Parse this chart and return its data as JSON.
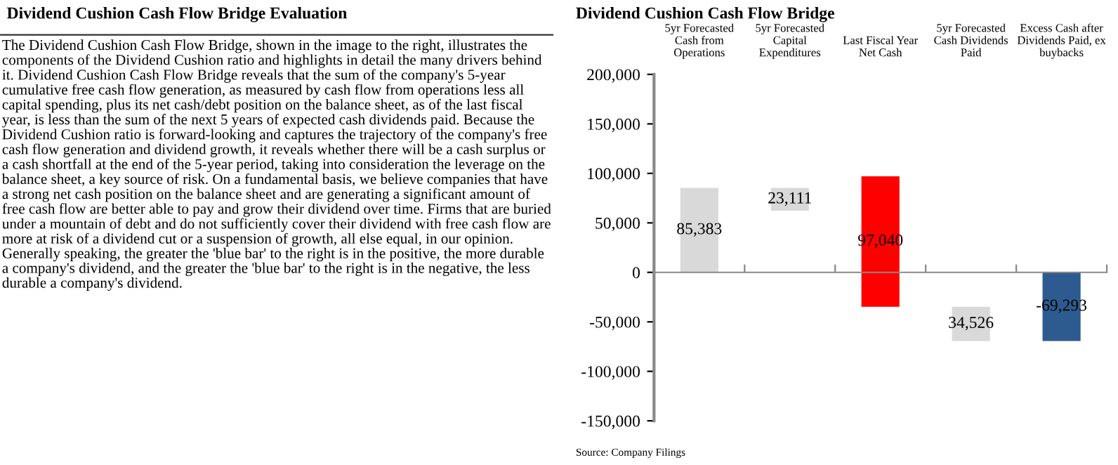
{
  "chart_data": [
    {
      "type": "other",
      "title": "Dividend Cushion Cash Flow Bridge Evaluation",
      "annotations": [
        "The Dividend Cushion Cash Flow Bridge, shown in the image to the right, illustrates the components of the Dividend Cushion ratio and highlights in detail the many drivers behind it. Dividend Cushion Cash Flow Bridge reveals that the sum of the company's 5-year cumulative free cash flow generation, as measured by cash flow from operations less all capital spending, plus its net cash/debt position on the balance sheet, as of the last fiscal year, is less than the sum of the next 5 years of expected cash dividends paid. Because the Dividend Cushion ratio is forward-looking and captures the trajectory of the company's free cash flow generation and dividend growth, it reveals whether there will be a cash surplus or a cash shortfall at the end of the 5-year period, taking into consideration the leverage on the balance sheet, a key source of risk. On a fundamental basis, we believe companies that have a strong net cash position on the balance sheet and are generating a significant amount of free cash flow are better able to pay and grow their dividend over time. Firms that are buried under a mountain of debt and do not sufficiently cover their dividend with free cash flow are more at risk of a dividend cut or a suspension of growth, all else equal, in our opinion. Generally speaking, the greater the 'blue bar' to the right is in the positive, the more durable a company's dividend, and the greater the 'blue bar' to the right is in the negative, the less durable a company's dividend."
      ]
    },
    {
      "type": "bar",
      "title": "Dividend Cushion Cash Flow Bridge",
      "categories": [
        "5yr Forecasted\nCash from\nOperations",
        "5yr Forecasted\nCapital\nExpenditures",
        "Last Fiscal Year\nNet Cash",
        "5yr Forecasted\nCash Dividends\nPaid",
        "Excess Cash after\nDividends Paid, ex\nbuybacks"
      ],
      "values": [
        85383,
        -23111,
        131807,
        -34526,
        -69293
      ],
      "base": [
        0,
        85383,
        -34767,
        -34767,
        0
      ],
      "colors": [
        "#d9d9d9",
        "#d9d9d9",
        "#ff0000",
        "#d9d9d9",
        "#2e5b8f"
      ],
      "value_labels": [
        "85,383",
        "23,111",
        "97,040",
        "34,526",
        "-69,293"
      ],
      "ylim": [
        -150000,
        200000
      ],
      "yticks": [
        {
          "value": -150000,
          "label": "-150,000"
        },
        {
          "value": -100000,
          "label": "-100,000"
        },
        {
          "value": -50000,
          "label": "-50,000"
        },
        0,
        {
          "value": 50000,
          "label": "50,000"
        },
        {
          "value": 100000,
          "label": "100,000"
        },
        {
          "value": 150000,
          "label": "150,000"
        },
        {
          "value": 200000,
          "label": "200,000"
        }
      ],
      "annotations": [
        "Source: Company Filings"
      ]
    }
  ]
}
